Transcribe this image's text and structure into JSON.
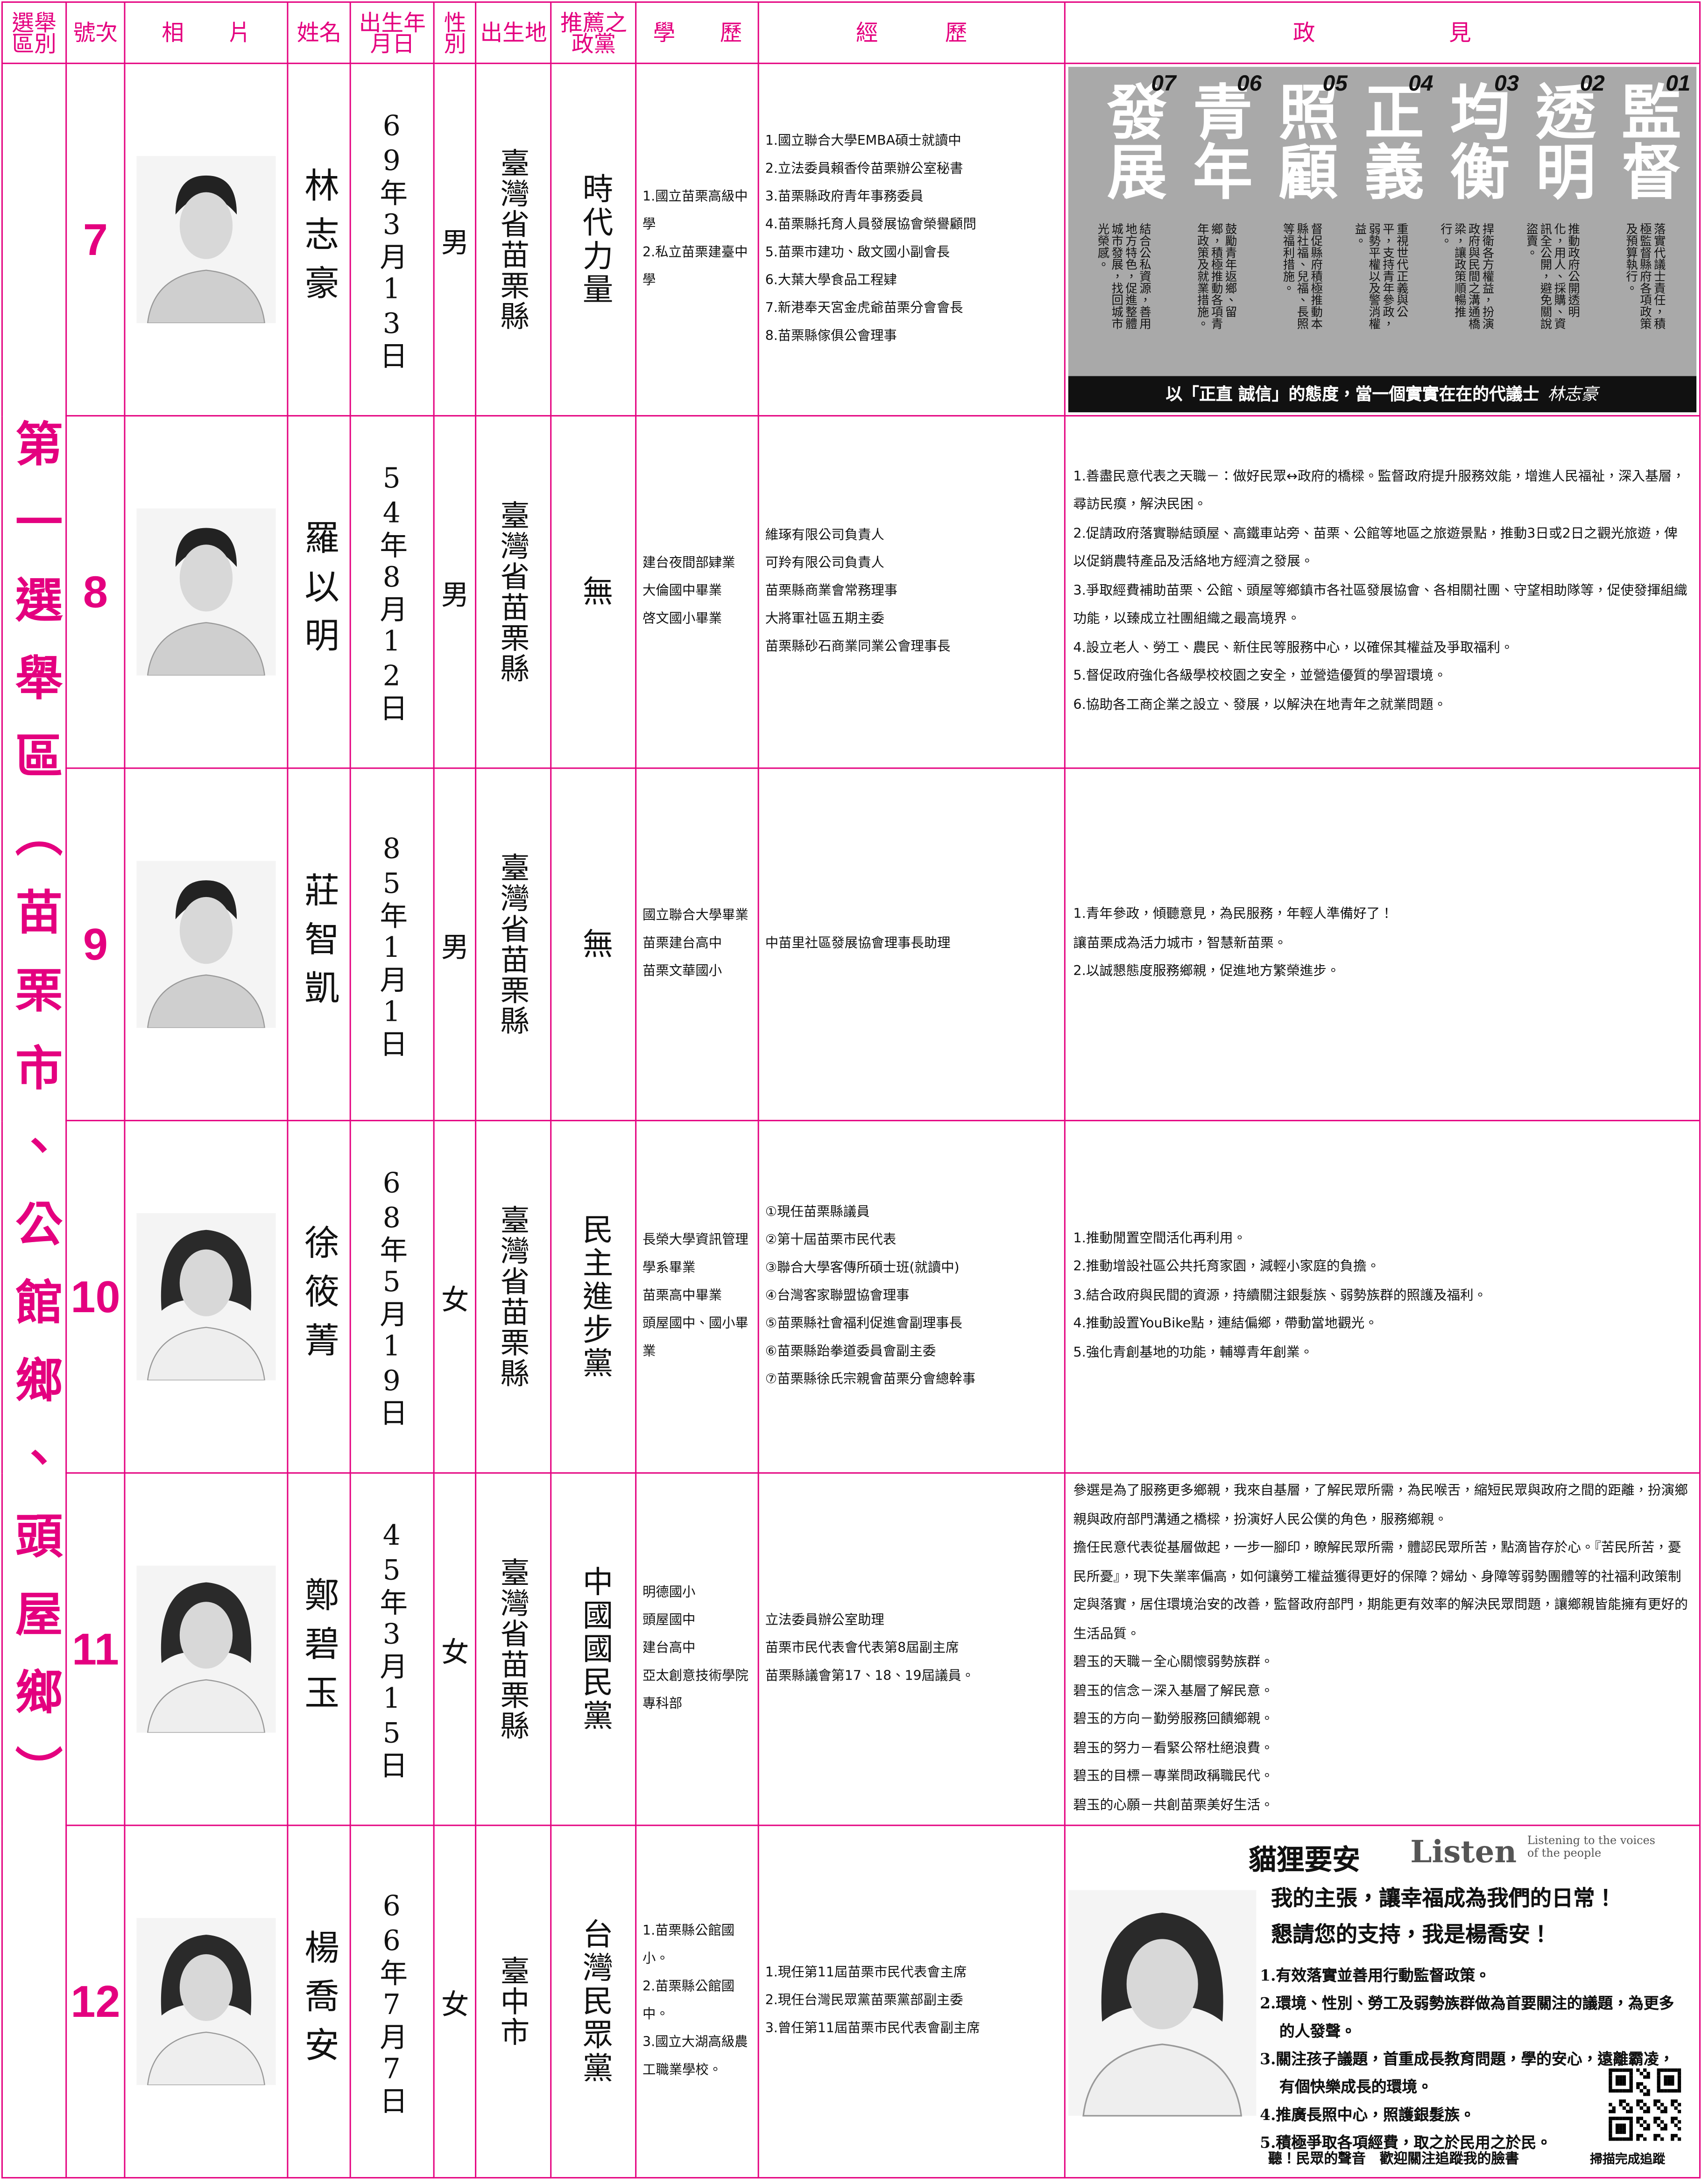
{
  "header": {
    "columns": [
      "選舉區別",
      "號次",
      "相　　片",
      "姓名",
      "出生年月日",
      "性別",
      "出生地",
      "推薦之政黨",
      "學　　歷",
      "經　　　歷",
      "政　　　　　　見"
    ]
  },
  "district": "第一選舉區（苗栗市、公館鄉、頭屋鄉）",
  "candidates": [
    {
      "number": "7",
      "name": "林志豪",
      "birth": "69年3月13日",
      "gender": "男",
      "birthplace": "臺灣省苗栗縣",
      "party": "時代力量",
      "education": [
        "1.國立苗栗高級中學",
        "2.私立苗栗建臺中學"
      ],
      "experience": [
        "1.國立聯合大學EMBA碩士就讀中",
        "2.立法委員賴香伶苗栗辦公室秘書",
        "3.苗栗縣政府青年事務委員",
        "4.苗栗縣托育人員發展協會榮譽顧問",
        "5.苗栗市建功、啟文國小副會長",
        "6.大葉大學食品工程肄",
        "7.新港奉天宮金虎爺苗栗分會會長",
        "8.苗栗縣傢俱公會理事"
      ],
      "platform": {
        "pillars": [
          {
            "number": "01",
            "title": "監督",
            "text": "落實代議士責任，積極監督縣府各項政策及預算執行。"
          },
          {
            "number": "02",
            "title": "透明",
            "text": "推動政府公開透明化，用人、採購、資訊全公開，避免關說盜賣。"
          },
          {
            "number": "03",
            "title": "均衡",
            "text": "捍衛各方權益，扮演政府與民間之溝通橋梁，讓政策順暢推行。"
          },
          {
            "number": "04",
            "title": "正義",
            "text": "重視世代正義與公平，支持青年參政，弱勢平權以及警消權益。"
          },
          {
            "number": "05",
            "title": "照顧",
            "text": "督促縣府積極推動本縣社福、兒福、長照等福利措施。"
          },
          {
            "number": "06",
            "title": "青年",
            "text": "鼓勵青年返鄉、留鄉，積極推動各項青年政策及就業措施。"
          },
          {
            "number": "07",
            "title": "發展",
            "text": "結合公私資源，善用地方特色，促進整體城市發展，找回城市光榮感。"
          }
        ],
        "slogan": "以「正直 誠信」的態度，當一個實實在在的代議士",
        "signature": "林志豪"
      }
    },
    {
      "number": "8",
      "name": "羅以明",
      "birth": "54年8月12日",
      "gender": "男",
      "birthplace": "臺灣省苗栗縣",
      "party": "無",
      "education": [
        "建台夜間部肄業",
        "大倫國中畢業",
        "啓文國小畢業"
      ],
      "experience": [
        "維琢有限公司負責人",
        "可羚有限公司負責人",
        "苗栗縣商業會常務理事",
        "大將軍社區五期主委",
        "苗栗縣砂石商業同業公會理事長"
      ],
      "platform": {
        "items": [
          "1.善盡民意代表之天職－：做好民眾↔政府的橋樑。監督政府提升服務效能，增進人民福祉，深入基層，尋訪民瘼，解決民困。",
          "2.促請政府落實聯結頭屋、高鐵車站旁、苗栗、公館等地區之旅遊景點，推動3日或2日之觀光旅遊，俾以促銷農特產品及活絡地方經濟之發展。",
          "3.爭取經費補助苗栗、公館、頭屋等鄉鎮市各社區發展協會、各相關社團、守望相助隊等，促使發揮組織功能，以臻成立社團組織之最高境界。",
          "4.設立老人、勞工、農民、新住民等服務中心，以確保其權益及爭取福利。",
          "5.督促政府強化各級學校校園之安全，並營造優質的學習環境。",
          "6.協助各工商企業之設立、發展，以解決在地青年之就業問題。"
        ]
      }
    },
    {
      "number": "9",
      "name": "莊智凱",
      "birth": "85年1月1日",
      "gender": "男",
      "birthplace": "臺灣省苗栗縣",
      "party": "無",
      "education": [
        "國立聯合大學畢業",
        "苗栗建台高中",
        "苗栗文華國小"
      ],
      "experience": [
        "中苗里社區發展協會理事長助理"
      ],
      "platform": {
        "items": [
          "1.青年參政，傾聽意見，為民服務，年輕人準備好了！",
          "讓苗栗成為活力城市，智慧新苗栗。",
          "2.以誠懇態度服務鄉親，促進地方繁榮進步。"
        ]
      }
    },
    {
      "number": "10",
      "name": "徐筱菁",
      "birth": "68年5月19日",
      "gender": "女",
      "birthplace": "臺灣省苗栗縣",
      "party": "民主進步黨",
      "education": [
        "長榮大學資訊管理學系畢業",
        "苗栗高中畢業",
        "頭屋國中、國小畢業"
      ],
      "experience": [
        "①現任苗栗縣議員",
        "②第十屆苗栗市民代表",
        "③聯合大學客傳所碩士班(就讀中)",
        "④台灣客家聯盟協會理事",
        "⑤苗栗縣社會福利促進會副理事長",
        "⑥苗栗縣跆拳道委員會副主委",
        "⑦苗栗縣徐氏宗親會苗栗分會總幹事"
      ],
      "platform": {
        "items": [
          "1.推動閒置空間活化再利用。",
          "2.推動增設社區公共托育家園，減輕小家庭的負擔。",
          "3.結合政府與民間的資源，持續關注銀髮族、弱勢族群的照護及福利。",
          "4.推動設置YouBike點，連結偏鄉，帶動當地觀光。",
          "5.強化青創基地的功能，輔導青年創業。"
        ]
      }
    },
    {
      "number": "11",
      "name": "鄭碧玉",
      "birth": "45年3月15日",
      "gender": "女",
      "birthplace": "臺灣省苗栗縣",
      "party": "中國國民黨",
      "education": [
        "明德國小",
        "頭屋國中",
        "建台高中",
        "亞太創意技術學院專科部"
      ],
      "experience": [
        "立法委員辦公室助理",
        "苗栗市民代表會代表第8屆副主席",
        "苗栗縣議會第17、18、19屆議員。"
      ],
      "platform": {
        "items": [
          "參選是為了服務更多鄉親，我來自基層，了解民眾所需，為民喉舌，縮短民眾與政府之間的距離，扮演鄉親與政府部門溝通之橋樑，扮演好人民公僕的角色，服務鄉親。",
          "擔任民意代表從基層做起，一步一腳印，瞭解民眾所需，體認民眾所苦，點滴皆存於心。『苦民所苦，憂民所憂』，現下失業率偏高，如何讓勞工權益獲得更好的保障？婦幼、身障等弱勢團體等的社福利政策制定與落實，居住環境治安的改善，監督政府部門，期能更有效率的解決民眾問題，讓鄉親皆能擁有更好的生活品質。",
          "碧玉的天職－全心關懷弱勢族群。",
          "碧玉的信念－深入基層了解民意。",
          "碧玉的方向－勤勞服務回饋鄉親。",
          "碧玉的努力－看緊公帑杜絕浪費。",
          "碧玉的目標－專業問政稱職民代。",
          "碧玉的心願－共創苗栗美好生活。"
        ]
      }
    },
    {
      "number": "12",
      "name": "楊喬安",
      "birth": "66年7月7日",
      "gender": "女",
      "birthplace": "臺中市",
      "party": "台灣民眾黨",
      "education": [
        "1.苗栗縣公館國小。",
        "2.苗栗縣公館國中。",
        "3.國立大湖高級農工職業學校。"
      ],
      "experience": [
        "1.現任第11屆苗栗市民代表會主席",
        "2.現任台灣民眾黨苗栗黨部副主委",
        "3.曾任第11屆苗栗市民代表會副主席"
      ],
      "platform": {
        "brand": "貓狸要安",
        "brand_en": "Listen",
        "tagline": "Listening to the voices of the people",
        "headline": [
          "我的主張，讓幸福成為我們的日常！",
          "懇請您的支持，我是楊喬安！"
        ],
        "items": [
          "1.有效落實並善用行動監督政策。",
          "2.環境、性別、勞工及弱勢族群做為首要關注的議題，為更多的人發聲。",
          "3.關注孩子議題，首重成長教育問題，學的安心，遠離霸凌，有個快樂成長的環境。",
          "4.推廣長照中心，照護銀髮族。",
          "5.積極爭取各項經費，取之於民用之於民。"
        ],
        "footer": "聽！民眾的聲音　歡迎關注追蹤我的臉書",
        "qr_caption": "掃描完成追蹤"
      }
    }
  ]
}
